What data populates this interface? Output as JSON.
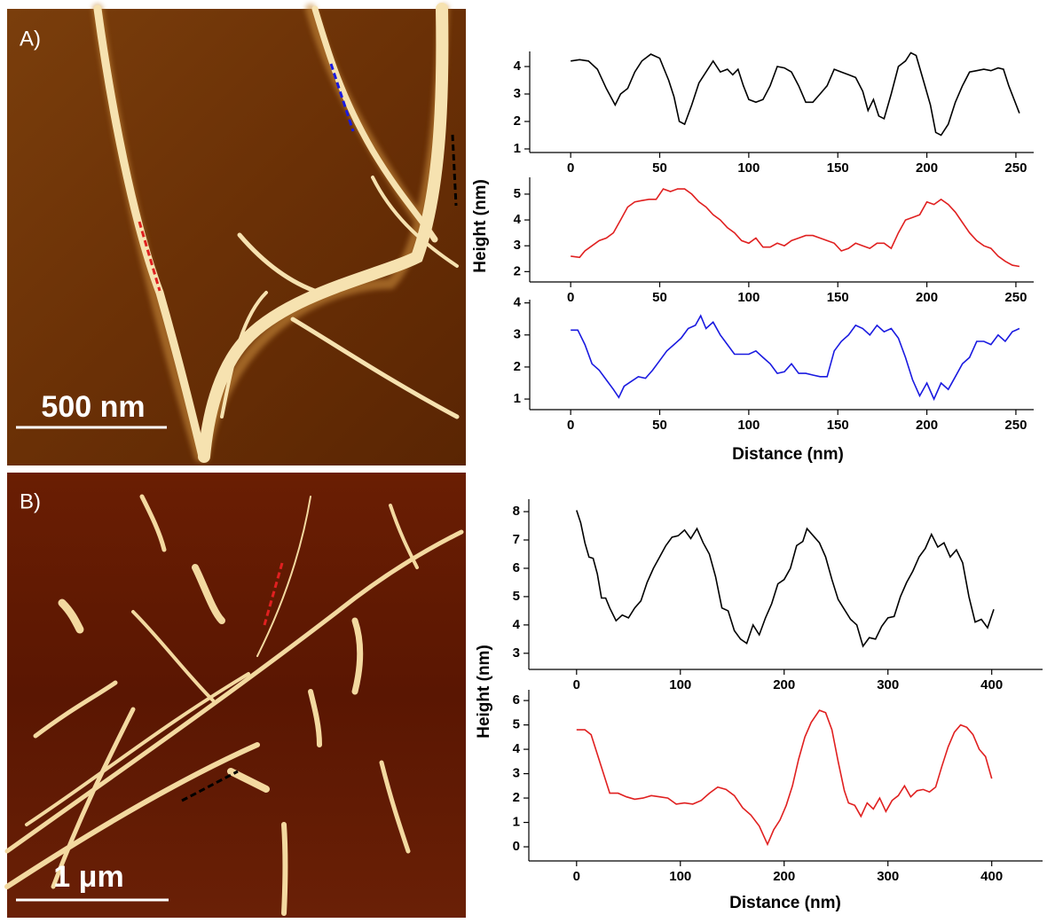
{
  "panels": [
    {
      "label": "A)",
      "scale_bar": "500 nm",
      "y_label": "Height (nm)",
      "x_label": "Distance (nm)"
    },
    {
      "label": "B)",
      "scale_bar": "1 μm",
      "y_label": "Height (nm)",
      "x_label": "Distance (nm)"
    }
  ],
  "chart_data": [
    {
      "type": "line",
      "color": "#000000",
      "x": [
        0,
        5,
        10,
        15,
        20,
        25,
        28,
        32,
        36,
        40,
        45,
        50,
        55,
        58,
        61,
        64,
        68,
        72,
        76,
        80,
        84,
        88,
        91,
        94,
        97,
        100,
        104,
        108,
        112,
        116,
        120,
        124,
        128,
        132,
        136,
        140,
        144,
        148,
        152,
        156,
        160,
        164,
        167,
        170,
        173,
        176,
        180,
        184,
        188,
        191,
        194,
        198,
        202,
        205,
        208,
        212,
        216,
        220,
        224,
        228,
        232,
        236,
        240,
        243,
        246,
        252
      ],
      "values": [
        4.2,
        4.25,
        4.2,
        3.9,
        3.2,
        2.6,
        3.0,
        3.2,
        3.8,
        4.2,
        4.45,
        4.3,
        3.5,
        2.9,
        2.0,
        1.9,
        2.6,
        3.4,
        3.8,
        4.2,
        3.8,
        3.9,
        3.7,
        3.9,
        3.3,
        2.8,
        2.7,
        2.8,
        3.3,
        4.0,
        3.95,
        3.8,
        3.3,
        2.7,
        2.7,
        3.0,
        3.3,
        3.9,
        3.8,
        3.7,
        3.6,
        3.1,
        2.4,
        2.8,
        2.2,
        2.1,
        3.0,
        4.0,
        4.2,
        4.5,
        4.4,
        3.5,
        2.6,
        1.6,
        1.5,
        1.9,
        2.7,
        3.3,
        3.8,
        3.85,
        3.9,
        3.85,
        3.95,
        3.9,
        3.3,
        2.3
      ],
      "xlim": [
        -23,
        260
      ],
      "xticks": [
        0,
        50,
        100,
        150,
        200,
        250
      ],
      "ylim": [
        0.87,
        4.55
      ],
      "yticks": [
        1,
        2,
        3,
        4
      ]
    },
    {
      "type": "line",
      "color": "#e02020",
      "x": [
        0,
        5,
        8,
        12,
        16,
        20,
        24,
        28,
        32,
        36,
        40,
        44,
        48,
        52,
        56,
        60,
        64,
        68,
        72,
        76,
        80,
        84,
        88,
        92,
        96,
        100,
        104,
        108,
        112,
        116,
        120,
        124,
        128,
        132,
        136,
        140,
        144,
        148,
        152,
        156,
        160,
        164,
        168,
        172,
        176,
        180,
        184,
        188,
        192,
        196,
        200,
        204,
        208,
        212,
        216,
        220,
        224,
        228,
        232,
        236,
        240,
        244,
        248,
        252
      ],
      "values": [
        2.6,
        2.55,
        2.8,
        3.0,
        3.2,
        3.3,
        3.5,
        4.0,
        4.5,
        4.7,
        4.75,
        4.8,
        4.8,
        5.2,
        5.1,
        5.2,
        5.2,
        5.0,
        4.7,
        4.5,
        4.2,
        4.0,
        3.7,
        3.5,
        3.2,
        3.1,
        3.3,
        2.95,
        2.95,
        3.1,
        3.0,
        3.2,
        3.3,
        3.4,
        3.4,
        3.3,
        3.2,
        3.1,
        2.8,
        2.9,
        3.1,
        3.0,
        2.9,
        3.1,
        3.1,
        2.9,
        3.5,
        4.0,
        4.1,
        4.2,
        4.7,
        4.6,
        4.8,
        4.6,
        4.3,
        3.9,
        3.5,
        3.2,
        3.0,
        2.9,
        2.6,
        2.4,
        2.25,
        2.2
      ],
      "xlim": [
        -23,
        260
      ],
      "xticks": [
        0,
        50,
        100,
        150,
        200,
        250
      ],
      "ylim": [
        1.6,
        5.65
      ],
      "yticks": [
        2,
        3,
        4,
        5
      ]
    },
    {
      "type": "line",
      "color": "#1a1ae0",
      "x": [
        0,
        4,
        8,
        12,
        16,
        20,
        24,
        27,
        30,
        34,
        38,
        42,
        46,
        50,
        54,
        58,
        62,
        66,
        70,
        73,
        76,
        80,
        84,
        88,
        92,
        96,
        100,
        104,
        108,
        112,
        116,
        120,
        124,
        128,
        132,
        136,
        140,
        144,
        148,
        152,
        156,
        160,
        164,
        168,
        172,
        176,
        180,
        184,
        188,
        192,
        196,
        200,
        204,
        208,
        212,
        216,
        220,
        224,
        228,
        232,
        236,
        240,
        244,
        248,
        252
      ],
      "values": [
        3.15,
        3.15,
        2.7,
        2.1,
        1.9,
        1.6,
        1.3,
        1.05,
        1.4,
        1.55,
        1.7,
        1.65,
        1.9,
        2.2,
        2.5,
        2.7,
        2.9,
        3.2,
        3.3,
        3.6,
        3.2,
        3.4,
        3.0,
        2.7,
        2.4,
        2.4,
        2.4,
        2.5,
        2.3,
        2.1,
        1.8,
        1.85,
        2.1,
        1.8,
        1.8,
        1.75,
        1.7,
        1.7,
        2.5,
        2.8,
        3.0,
        3.3,
        3.2,
        3.0,
        3.3,
        3.1,
        3.2,
        2.9,
        2.3,
        1.6,
        1.1,
        1.5,
        1.0,
        1.5,
        1.3,
        1.7,
        2.1,
        2.3,
        2.8,
        2.8,
        2.7,
        3.0,
        2.8,
        3.1,
        3.2
      ],
      "xlim": [
        -23,
        260
      ],
      "xticks": [
        0,
        50,
        100,
        150,
        200,
        250
      ],
      "ylim": [
        0.67,
        4.1
      ],
      "yticks": [
        1,
        2,
        3,
        4
      ]
    },
    {
      "type": "line",
      "color": "#000000",
      "x": [
        0,
        4,
        8,
        12,
        16,
        20,
        24,
        28,
        32,
        38,
        44,
        50,
        56,
        62,
        68,
        74,
        80,
        86,
        92,
        98,
        104,
        110,
        116,
        122,
        128,
        134,
        140,
        146,
        152,
        158,
        164,
        170,
        176,
        182,
        188,
        194,
        200,
        206,
        212,
        218,
        222,
        228,
        234,
        240,
        246,
        252,
        258,
        264,
        270,
        276,
        282,
        288,
        294,
        300,
        306,
        312,
        318,
        324,
        330,
        336,
        342,
        348,
        354,
        360,
        366,
        372,
        378,
        384,
        390,
        396,
        402
      ],
      "values": [
        8.05,
        7.6,
        6.9,
        6.4,
        6.35,
        5.8,
        4.95,
        4.95,
        4.6,
        4.15,
        4.35,
        4.25,
        4.6,
        4.85,
        5.5,
        6.0,
        6.4,
        6.8,
        7.1,
        7.15,
        7.35,
        7.05,
        7.4,
        6.9,
        6.5,
        5.7,
        4.6,
        4.5,
        3.8,
        3.5,
        3.35,
        4.0,
        3.65,
        4.25,
        4.75,
        5.45,
        5.6,
        6.0,
        6.8,
        6.95,
        7.4,
        7.15,
        6.9,
        6.4,
        5.6,
        4.9,
        4.55,
        4.2,
        4.0,
        3.25,
        3.55,
        3.5,
        3.95,
        4.25,
        4.3,
        5.0,
        5.5,
        5.9,
        6.4,
        6.7,
        7.2,
        6.75,
        6.9,
        6.4,
        6.65,
        6.2,
        5.0,
        4.1,
        4.2,
        3.9,
        4.55
      ],
      "xlim": [
        -46,
        449
      ],
      "xticks": [
        0,
        100,
        200,
        300,
        400
      ],
      "ylim": [
        2.43,
        8.44
      ],
      "yticks": [
        3,
        4,
        5,
        6,
        7,
        8
      ]
    },
    {
      "type": "line",
      "color": "#e02020",
      "x": [
        0,
        8,
        14,
        20,
        26,
        32,
        40,
        48,
        56,
        64,
        72,
        80,
        88,
        96,
        104,
        112,
        120,
        128,
        136,
        144,
        152,
        160,
        168,
        176,
        184,
        190,
        196,
        202,
        208,
        214,
        220,
        226,
        234,
        240,
        246,
        252,
        258,
        262,
        268,
        274,
        280,
        286,
        292,
        298,
        304,
        310,
        316,
        322,
        328,
        334,
        340,
        346,
        352,
        358,
        364,
        370,
        376,
        382,
        388,
        394,
        400
      ],
      "values": [
        4.8,
        4.8,
        4.6,
        3.8,
        3.0,
        2.2,
        2.2,
        2.05,
        1.95,
        2.0,
        2.1,
        2.05,
        2.0,
        1.75,
        1.8,
        1.75,
        1.9,
        2.2,
        2.45,
        2.35,
        2.1,
        1.6,
        1.3,
        0.85,
        0.1,
        0.7,
        1.1,
        1.7,
        2.5,
        3.6,
        4.5,
        5.1,
        5.6,
        5.5,
        4.8,
        3.5,
        2.3,
        1.8,
        1.7,
        1.25,
        1.8,
        1.55,
        2.0,
        1.45,
        1.9,
        2.1,
        2.5,
        2.05,
        2.3,
        2.35,
        2.25,
        2.45,
        3.3,
        4.1,
        4.7,
        5.0,
        4.9,
        4.6,
        4.0,
        3.7,
        2.8
      ],
      "xlim": [
        -46,
        449
      ],
      "xticks": [
        0,
        100,
        200,
        300,
        400
      ],
      "ylim": [
        -0.58,
        6.44
      ],
      "yticks": [
        0,
        1,
        2,
        3,
        4,
        5,
        6
      ]
    }
  ]
}
